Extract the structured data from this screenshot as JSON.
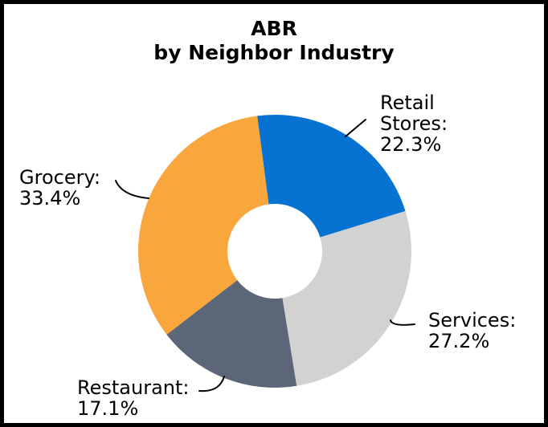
{
  "chart_data": {
    "type": "pie",
    "subtype": "donut",
    "title": "ABR by Neighbor Industry",
    "title_lines": [
      "ABR",
      "by Neighbor Industry"
    ],
    "legend": "none",
    "grid": false,
    "start_angle_deg": -7.4,
    "inner_radius_ratio": 0.347,
    "label_format": "name: value%",
    "slices": [
      {
        "name": "Retail Stores",
        "value": 22.3,
        "color": "#0673D2",
        "label_lines": [
          "Retail",
          "Stores:",
          "22.3%"
        ]
      },
      {
        "name": "Services",
        "value": 27.2,
        "color": "#D2D2D2",
        "label_lines": [
          "Services:",
          "27.2%"
        ]
      },
      {
        "name": "Restaurant",
        "value": 17.1,
        "color": "#5B6778",
        "label_lines": [
          "Restaurant:",
          "17.1%"
        ]
      },
      {
        "name": "Grocery",
        "value": 33.4,
        "color": "#F9A73D",
        "label_lines": [
          "Grocery:",
          "33.4%"
        ]
      }
    ]
  },
  "frame": {
    "border_color": "#000000",
    "background_color": "#FFFFFF",
    "text_color": "#000000"
  }
}
